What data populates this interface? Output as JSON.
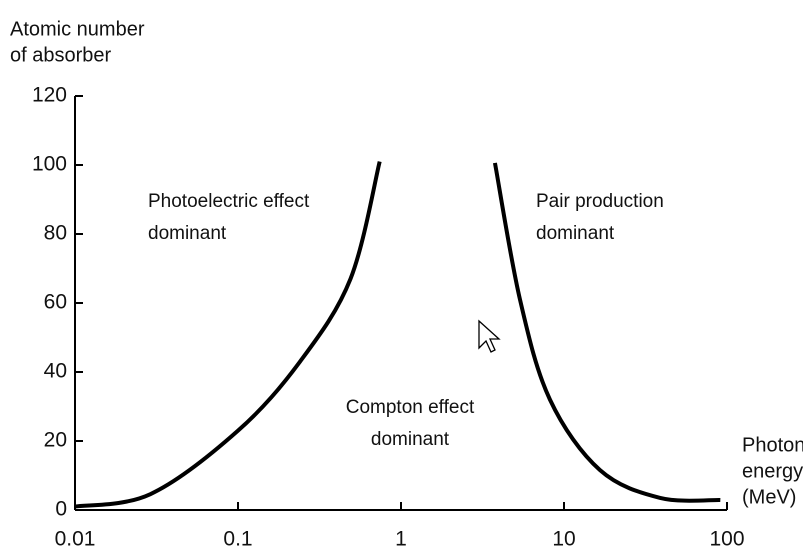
{
  "chart_data": {
    "type": "line",
    "ylabel": [
      "Atomic number",
      "of absorber"
    ],
    "xlabel": [
      "Photon",
      "energy",
      "(MeV)"
    ],
    "xscale": "log",
    "xlim": [
      0.01,
      100
    ],
    "xticks": [
      0.01,
      0.1,
      1,
      10,
      100
    ],
    "ylim": [
      0,
      120
    ],
    "yticks": [
      0,
      20,
      40,
      60,
      80,
      100,
      120
    ],
    "grid": false,
    "series": [
      {
        "color": "#000000",
        "x": [
          0.01,
          0.029,
          0.1,
          0.24,
          0.49,
          0.74
        ],
        "values": [
          1,
          4.6,
          23,
          43,
          67,
          101
        ]
      },
      {
        "color": "#000000",
        "x": [
          3.77,
          5.37,
          8.2,
          16.6,
          38.9,
          91
        ],
        "values": [
          100.6,
          61,
          32,
          11.6,
          3.5,
          2.9
        ]
      }
    ],
    "annotations": [
      {
        "text": [
          "Photoelectric effect",
          "dominant"
        ]
      },
      {
        "text": [
          "Pair production",
          "dominant"
        ]
      },
      {
        "text": [
          "Compton effect",
          "dominant"
        ]
      }
    ]
  }
}
